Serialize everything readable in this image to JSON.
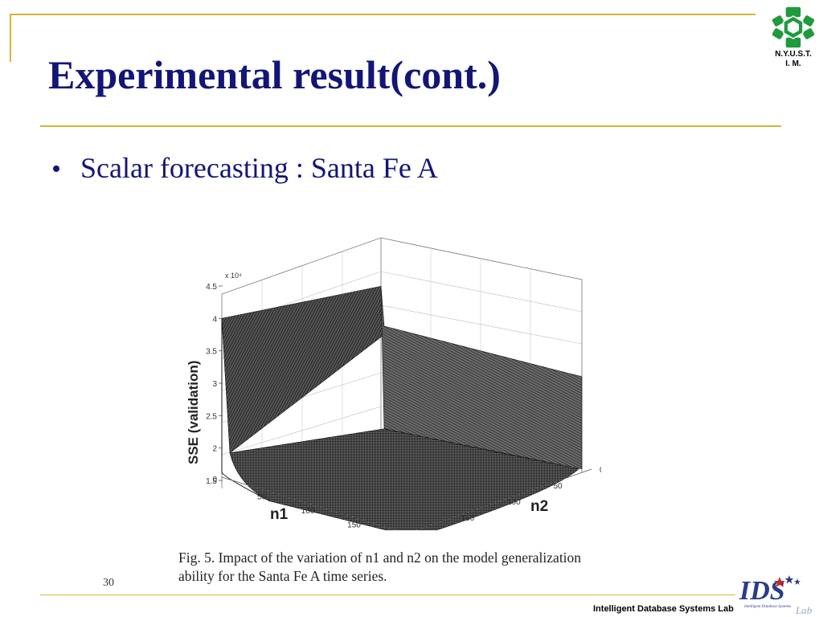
{
  "header": {
    "title": "Experimental result(cont.)",
    "logo_text_line1": "N.Y.U.S.T.",
    "logo_text_line2": "I. M.",
    "logo_icon": "nyust-snowflake-logo"
  },
  "content": {
    "bullets": [
      "Scalar forecasting : Santa Fe A"
    ]
  },
  "figure": {
    "caption": "Fig. 5. Impact of the variation of n1 and n2 on the model generalization ability for the Santa Fe A time series.",
    "chart_data": {
      "type": "surface",
      "title": "",
      "zlabel": "SSE (validation)",
      "z_multiplier": "x 10⁴",
      "z_ticks": [
        "1.5",
        "2",
        "2.5",
        "3",
        "3.5",
        "4",
        "4.5"
      ],
      "z_floor_label": "0",
      "x_label": "n1",
      "x_ticks": [
        "50",
        "100",
        "150",
        "200"
      ],
      "y_label": "n2",
      "y_ticks": [
        "0",
        "50",
        "100",
        "150",
        "200"
      ],
      "x_range": [
        0,
        200
      ],
      "y_range": [
        0,
        200
      ],
      "z_range": [
        15000,
        45000
      ],
      "grid": true,
      "surface_profile": {
        "sse_at_n1_0": 40000,
        "sse_at_n2_0": 31000,
        "plateau_sse": 18000
      }
    }
  },
  "footer": {
    "page_number": "30",
    "lab_name": "Intelligent Database Systems Lab",
    "lab_logo_text": "IDS",
    "lab_logo_sub": "Lab",
    "lab_logo_motto": "Intelligent Database Systems"
  },
  "colors": {
    "accent_rule": "#d4b53a",
    "title_color": "#131676",
    "logo_green": "#1f9a3e",
    "ids_blue": "#2a3c8a",
    "ids_red": "#c0282d"
  }
}
